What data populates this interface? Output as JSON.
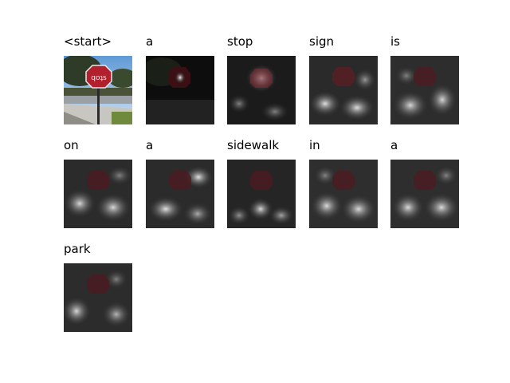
{
  "panels": [
    {
      "word": "<start>",
      "type": "original",
      "attention": null
    },
    {
      "word": "a",
      "type": "attention",
      "attention": "lower-center-bright"
    },
    {
      "word": "stop",
      "type": "attention",
      "attention": "sign-area"
    },
    {
      "word": "sign",
      "type": "attention",
      "attention": "spread-lower"
    },
    {
      "word": "is",
      "type": "attention",
      "attention": "diffuse"
    },
    {
      "word": "on",
      "type": "attention",
      "attention": "diffuse"
    },
    {
      "word": "a",
      "type": "attention",
      "attention": "diffuse-right"
    },
    {
      "word": "sidewalk",
      "type": "attention",
      "attention": "diffuse-lower"
    },
    {
      "word": "in",
      "type": "attention",
      "attention": "diffuse"
    },
    {
      "word": "a",
      "type": "attention",
      "attention": "diffuse"
    },
    {
      "word": "park",
      "type": "attention",
      "attention": "diffuse-left"
    }
  ],
  "colors": {
    "sky": "#7fb0e0",
    "sign_red": "#b2202e",
    "ground": "#c9c7c2",
    "grass": "#6f8a3c"
  }
}
